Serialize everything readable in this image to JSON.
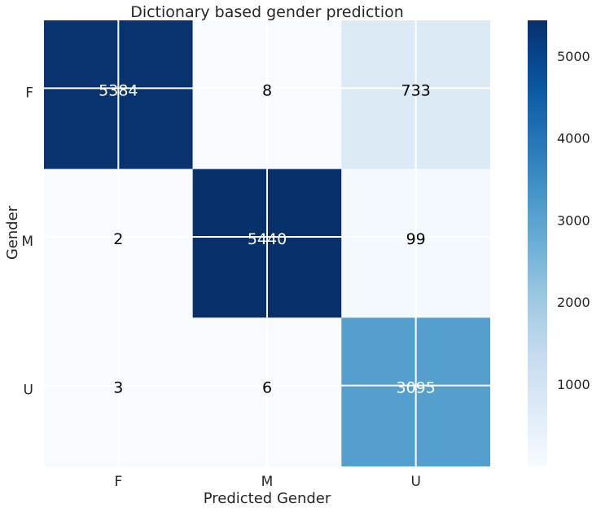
{
  "chart_data": {
    "type": "heatmap",
    "title": "Dictionary based gender prediction",
    "xlabel": "Predicted Gender",
    "ylabel": "Gender",
    "x_categories": [
      "F",
      "M",
      "U"
    ],
    "y_categories": [
      "F",
      "M",
      "U"
    ],
    "values": [
      [
        5384,
        8,
        733
      ],
      [
        2,
        5440,
        99
      ],
      [
        3,
        6,
        3095
      ]
    ],
    "colormap": "Blues",
    "colorbar": {
      "range": [
        2,
        5440
      ],
      "ticks": [
        1000,
        2000,
        3000,
        4000,
        5000
      ],
      "tick_labels": [
        "1000",
        "2000",
        "3000",
        "4000",
        "5000"
      ]
    },
    "grid": true
  }
}
